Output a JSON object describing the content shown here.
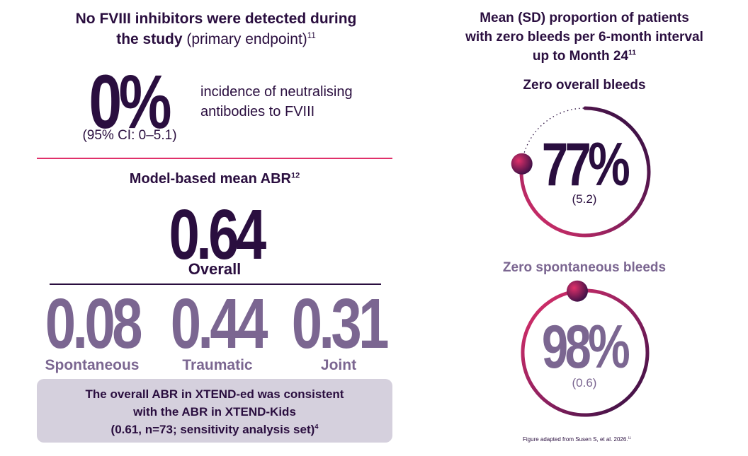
{
  "inhibitors": {
    "title_bold_1": "No FVIII inhibitors were detected during",
    "title_bold_2": "the study",
    "title_light": " (primary endpoint)",
    "title_ref": "11",
    "value": "0%",
    "description_1": "incidence of neutralising",
    "description_2": "antibodies to FVIII",
    "ci": "(95% CI: 0–5.1)"
  },
  "abr": {
    "title": "Model-based mean ABR",
    "title_ref": "12",
    "overall_value": "0.64",
    "overall_label": "Overall",
    "spontaneous_value": "0.08",
    "spontaneous_label": "Spontaneous",
    "traumatic_value": "0.44",
    "traumatic_label": "Traumatic",
    "joint_value": "0.31",
    "joint_label": "Joint"
  },
  "callout": {
    "line1": "The overall ABR in XTEND-ed was consistent",
    "line2": "with the ABR in XTEND-Kids",
    "line3": "(0.61, n=73; sensitivity analysis set)",
    "ref": "4"
  },
  "right_panel": {
    "title_1": "Mean (SD) proportion of patients",
    "title_2": "with zero bleeds per 6-month interval",
    "title_3": "up to Month 24",
    "title_ref": "11",
    "overall": {
      "label": "Zero overall bleeds",
      "percent": "77%",
      "sd": "(5.2)",
      "fraction": 0.77
    },
    "spontaneous": {
      "label": "Zero spontaneous bleeds",
      "percent": "98%",
      "sd": "(0.6)",
      "fraction": 0.98
    }
  },
  "footnote": {
    "text": "Figure adapted from Susen S, et al. 2026.",
    "ref": "11"
  },
  "colors": {
    "dark_purple": "#2a0e3f",
    "muted_purple": "#7b6691",
    "pink": "#e0306a",
    "callout_bg": "#d5d0dd"
  }
}
